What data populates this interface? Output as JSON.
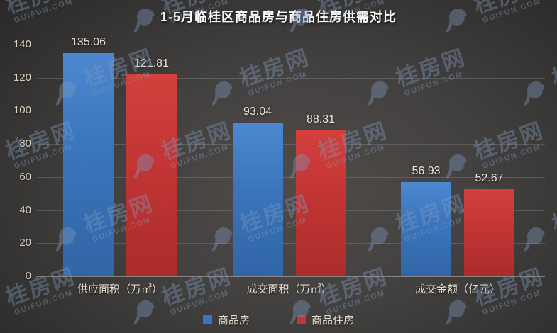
{
  "watermark": {
    "site_name": "桂房网",
    "site_url": "GUIFUN.COM"
  },
  "colors": {
    "background": "#3f3d3a",
    "series_blue": "#3a74bb",
    "series_red": "#c23534",
    "watermark_blue": "#7c99be",
    "axis_text": "#d9d2c4",
    "title_text": "#fcfcfc"
  },
  "chart_data": {
    "type": "bar",
    "title": "1-5月临桂区商品房与商品住房供需对比",
    "categories": [
      "供应面积（万㎡）",
      "成交面积（万㎡）",
      "成交金额（亿元）"
    ],
    "series": [
      {
        "name": "商品房",
        "color": "#3a76c0",
        "values": [
          135.06,
          93.04,
          56.93
        ]
      },
      {
        "name": "商品住房",
        "color": "#c43534",
        "values": [
          121.81,
          88.31,
          52.67
        ]
      }
    ],
    "value_labels": [
      [
        "135.06",
        "93.04",
        "56.93"
      ],
      [
        "121.81",
        "88.31",
        "52.67"
      ]
    ],
    "xlabel": "",
    "ylabel": "",
    "ylim": [
      0,
      140
    ],
    "yticks": [
      0,
      20,
      40,
      60,
      80,
      100,
      120,
      140
    ],
    "grid": true,
    "legend_position": "bottom"
  }
}
